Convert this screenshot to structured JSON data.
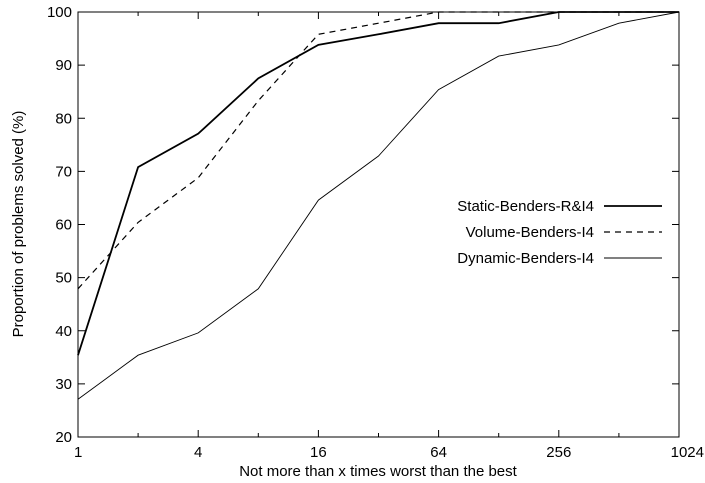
{
  "chart_data": {
    "type": "line",
    "title": "",
    "xlabel": "Not more than x times worst than the best",
    "ylabel": "Proportion of problems solved (%)",
    "x_scale": "log2",
    "xlim": [
      1,
      1024
    ],
    "ylim": [
      20,
      100
    ],
    "x_ticks": [
      1,
      4,
      16,
      64,
      256,
      1024
    ],
    "x_tick_labels": [
      "1",
      "4",
      "16",
      "64",
      "256",
      "1024"
    ],
    "y_ticks": [
      20,
      30,
      40,
      50,
      60,
      70,
      80,
      90,
      100
    ],
    "y_tick_labels": [
      "20",
      "30",
      "40",
      "50",
      "60",
      "70",
      "80",
      "90",
      "100"
    ],
    "grid": false,
    "legend_position": "right-middle",
    "x": [
      1,
      2,
      4,
      8,
      16,
      32,
      64,
      128,
      256,
      512,
      1024
    ],
    "series": [
      {
        "name": "Static-Benders-R&I4",
        "style": "solid-thick",
        "color": "#000000",
        "values": [
          35.4,
          70.8,
          77.1,
          87.5,
          93.8,
          95.8,
          97.9,
          97.9,
          100,
          100,
          100
        ]
      },
      {
        "name": "Volume-Benders-I4",
        "style": "dashed",
        "color": "#000000",
        "values": [
          47.9,
          60.4,
          68.8,
          83.3,
          95.8,
          97.9,
          100,
          100,
          100,
          100,
          100
        ]
      },
      {
        "name": "Dynamic-Benders-I4",
        "style": "solid-thin",
        "color": "#000000",
        "values": [
          27.1,
          35.4,
          39.6,
          47.9,
          64.6,
          72.9,
          85.4,
          91.7,
          93.8,
          97.9,
          100
        ]
      }
    ]
  }
}
